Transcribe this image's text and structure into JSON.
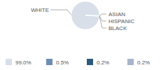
{
  "chart_data": {
    "type": "pie",
    "categories": [
      "WHITE",
      "ASIAN",
      "HISPANIC",
      "BLACK"
    ],
    "values": [
      99.0,
      0.5,
      0.2,
      0.2
    ],
    "value_labels": [
      "99.0%",
      "0.5%",
      "0.2%",
      "0.2%"
    ],
    "colors": [
      "#d8dfe9",
      "#6d8db3",
      "#2b5a7d",
      "#a6b5ca"
    ],
    "legend": "bottom"
  }
}
